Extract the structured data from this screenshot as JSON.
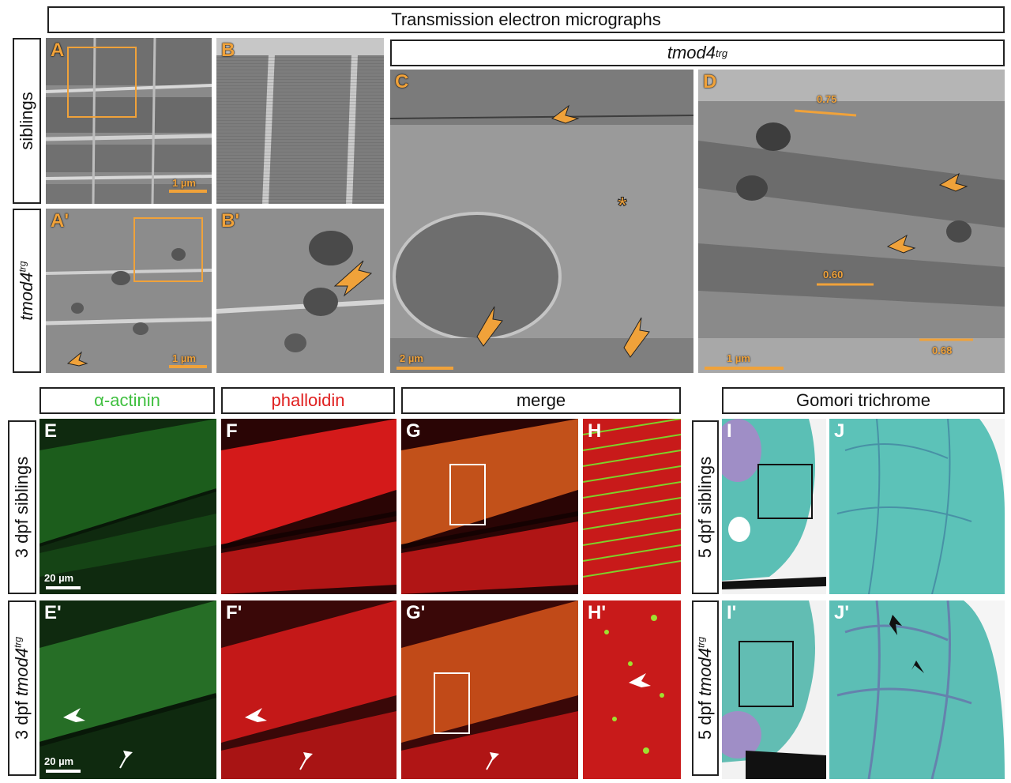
{
  "headers": {
    "tem": "Transmission electron micrographs",
    "tmod4_tem": "tmod4",
    "trg_sup": "trg",
    "actinin": "α-actinin",
    "phalloidin": "phalloidin",
    "merge": "merge",
    "gomori": "Gomori trichrome"
  },
  "row_labels": {
    "siblings": "siblings",
    "tmod4": "tmod4",
    "trg": "trg",
    "dpf3_siblings": "3 dpf siblings",
    "dpf3_tmod4_prefix": "3 dpf",
    "dpf3_tmod4": "tmod4",
    "dpf5_siblings": "5 dpf siblings",
    "dpf5_tmod4_prefix": "5 dpf",
    "dpf5_tmod4": "tmod4"
  },
  "panel_labels": {
    "A": "A",
    "B": "B",
    "A2": "A'",
    "B2": "B'",
    "C": "C",
    "D": "D",
    "E": "E",
    "F": "F",
    "G": "G",
    "H": "H",
    "E2": "E'",
    "F2": "F'",
    "G2": "G'",
    "H2": "H'",
    "I": "I",
    "J": "J",
    "I2": "I'",
    "J2": "J'"
  },
  "scale_bars": {
    "A": "1 µm",
    "A2": "1 µm",
    "C": "2 µm",
    "D": "1 µm",
    "E": "20 µm",
    "E2": "20 µm"
  },
  "measurements": {
    "m1": "0.75",
    "m2": "0.60",
    "m3": "0.68"
  },
  "colors": {
    "orange": "#f0a23a",
    "green": "#3fbf3f",
    "red": "#e02020",
    "teal": "#5bbfb5"
  }
}
